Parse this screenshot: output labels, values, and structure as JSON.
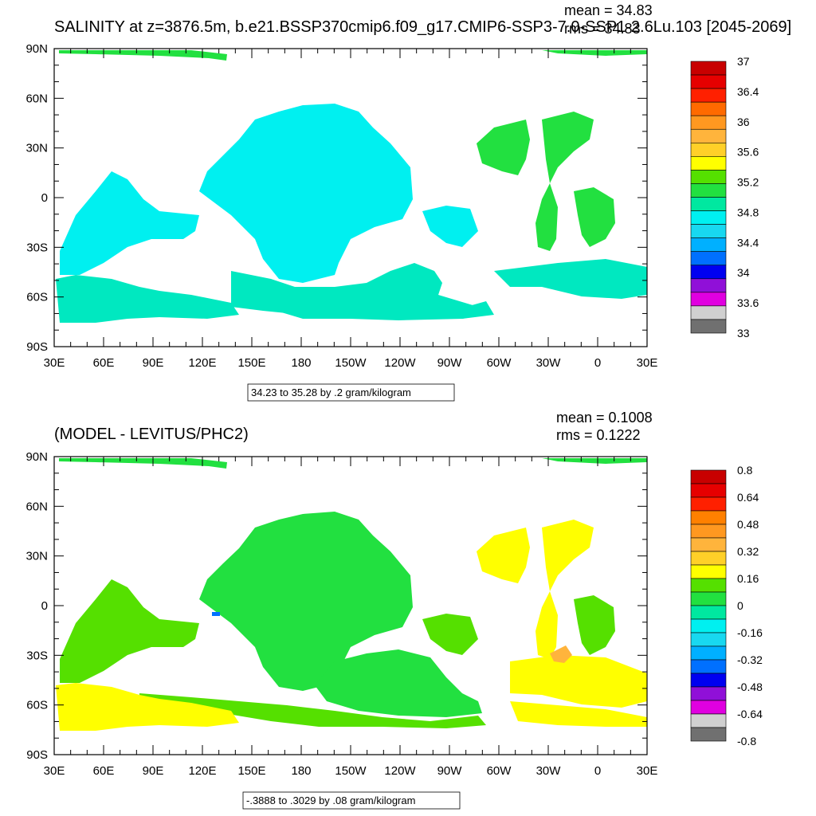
{
  "top_panel": {
    "title": "SALINITY at z=3876.5m, b.e21.BSSP370cmip6.f09_g17.CMIP6-SSP3-7.0-SSP1-2.6Lu.103 [2045-2069]",
    "mean_text": "mean = 34.83",
    "rms_text": "rms = 34.83",
    "info_box": "34.23 to 35.28 by .2 gram/kilogram",
    "colorbar": {
      "labels": [
        "37",
        "36.4",
        "36",
        "35.6",
        "35.2",
        "34.8",
        "34.4",
        "34",
        "33.6",
        "33"
      ],
      "colors": [
        "#c80000",
        "#e60000",
        "#ff2000",
        "#ff6a00",
        "#ff9820",
        "#ffb43c",
        "#ffd028",
        "#ffff00",
        "#55e000",
        "#22e040",
        "#00e8a0",
        "#00f0f0",
        "#18d8f0",
        "#00b0ff",
        "#0070ff",
        "#0000f0",
        "#9010d8",
        "#e000e0",
        "#d0d0d0",
        "#707070"
      ]
    }
  },
  "bottom_panel": {
    "title": "(MODEL - LEVITUS/PHC2)",
    "mean_text": "mean = 0.1008",
    "rms_text": "rms = 0.1222",
    "info_box": "-.3888 to .3029 by .08 gram/kilogram",
    "colorbar": {
      "labels": [
        "0.8",
        "0.64",
        "0.48",
        "0.32",
        "0.16",
        "0",
        "-0.16",
        "-0.32",
        "-0.48",
        "-0.64",
        "-0.8"
      ],
      "colors": [
        "#c80000",
        "#e60000",
        "#ff2000",
        "#ff8000",
        "#ff9820",
        "#ffb43c",
        "#ffd028",
        "#ffff00",
        "#55e000",
        "#22e040",
        "#00e8a0",
        "#00f0f0",
        "#18d8f0",
        "#00b0ff",
        "#0070ff",
        "#0000f0",
        "#9010d8",
        "#e000e0",
        "#d0d0d0",
        "#707070"
      ]
    }
  },
  "axes": {
    "lat_labels": [
      "90N",
      "60N",
      "30N",
      "0",
      "30S",
      "60S",
      "90S"
    ],
    "lon_labels": [
      "30E",
      "60E",
      "90E",
      "120E",
      "150E",
      "180",
      "150W",
      "120W",
      "90W",
      "60W",
      "30W",
      "0",
      "30E"
    ]
  },
  "colors": {
    "top_fill": "#00f0f0",
    "top_south_fill": "#00e8c0",
    "top_green": "#22e040",
    "diff_green": "#22e040",
    "diff_lime": "#55e000",
    "diff_yellow": "#ffff00",
    "diff_gold": "#ffd028",
    "diff_orange": "#ffb43c",
    "diff_blue": "#0070ff"
  }
}
